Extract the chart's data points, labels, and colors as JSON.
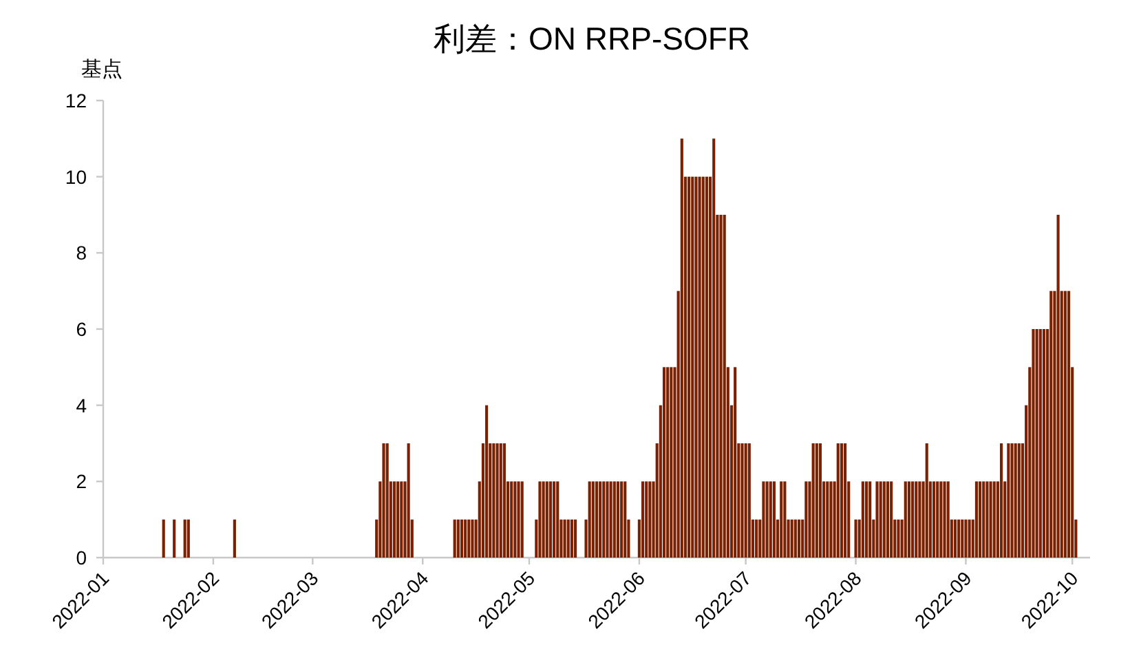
{
  "chart_data": {
    "type": "bar",
    "title": "利差：ON RRP-SOFR",
    "ylabel": "基点",
    "color": "#7b2100",
    "x": [
      "2022-01-18",
      "2022-01-21",
      "2022-01-24",
      "2022-01-25",
      "2022-02-07",
      "2022-03-19",
      "2022-03-20",
      "2022-03-21",
      "2022-03-22",
      "2022-03-23",
      "2022-03-24",
      "2022-03-25",
      "2022-03-26",
      "2022-03-27",
      "2022-03-28",
      "2022-03-29",
      "2022-04-10",
      "2022-04-11",
      "2022-04-12",
      "2022-04-13",
      "2022-04-14",
      "2022-04-15",
      "2022-04-16",
      "2022-04-17",
      "2022-04-18",
      "2022-04-19",
      "2022-04-20",
      "2022-04-21",
      "2022-04-22",
      "2022-04-23",
      "2022-04-24",
      "2022-04-25",
      "2022-04-26",
      "2022-04-27",
      "2022-04-28",
      "2022-04-29",
      "2022-05-03",
      "2022-05-04",
      "2022-05-05",
      "2022-05-06",
      "2022-05-07",
      "2022-05-08",
      "2022-05-09",
      "2022-05-10",
      "2022-05-11",
      "2022-05-12",
      "2022-05-13",
      "2022-05-14",
      "2022-05-17",
      "2022-05-18",
      "2022-05-19",
      "2022-05-20",
      "2022-05-21",
      "2022-05-22",
      "2022-05-23",
      "2022-05-24",
      "2022-05-25",
      "2022-05-26",
      "2022-05-27",
      "2022-05-28",
      "2022-05-29",
      "2022-06-01",
      "2022-06-02",
      "2022-06-03",
      "2022-06-04",
      "2022-06-05",
      "2022-06-06",
      "2022-06-07",
      "2022-06-08",
      "2022-06-09",
      "2022-06-10",
      "2022-06-11",
      "2022-06-12",
      "2022-06-13",
      "2022-06-14",
      "2022-06-15",
      "2022-06-16",
      "2022-06-17",
      "2022-06-18",
      "2022-06-19",
      "2022-06-20",
      "2022-06-21",
      "2022-06-22",
      "2022-06-23",
      "2022-06-24",
      "2022-06-25",
      "2022-06-26",
      "2022-06-27",
      "2022-06-28",
      "2022-06-29",
      "2022-06-30",
      "2022-07-01",
      "2022-07-02",
      "2022-07-03",
      "2022-07-04",
      "2022-07-05",
      "2022-07-06",
      "2022-07-07",
      "2022-07-08",
      "2022-07-09",
      "2022-07-10",
      "2022-07-11",
      "2022-07-12",
      "2022-07-13",
      "2022-07-14",
      "2022-07-15",
      "2022-07-16",
      "2022-07-17",
      "2022-07-18",
      "2022-07-19",
      "2022-07-20",
      "2022-07-21",
      "2022-07-22",
      "2022-07-23",
      "2022-07-24",
      "2022-07-25",
      "2022-07-26",
      "2022-07-27",
      "2022-07-28",
      "2022-07-29",
      "2022-07-30",
      "2022-08-01",
      "2022-08-02",
      "2022-08-03",
      "2022-08-04",
      "2022-08-05",
      "2022-08-06",
      "2022-08-07",
      "2022-08-08",
      "2022-08-09",
      "2022-08-10",
      "2022-08-11",
      "2022-08-12",
      "2022-08-13",
      "2022-08-14",
      "2022-08-15",
      "2022-08-16",
      "2022-08-17",
      "2022-08-18",
      "2022-08-19",
      "2022-08-20",
      "2022-08-21",
      "2022-08-22",
      "2022-08-23",
      "2022-08-24",
      "2022-08-25",
      "2022-08-26",
      "2022-08-27",
      "2022-08-28",
      "2022-08-29",
      "2022-08-30",
      "2022-08-31",
      "2022-09-01",
      "2022-09-02",
      "2022-09-03",
      "2022-09-04",
      "2022-09-05",
      "2022-09-06",
      "2022-09-07",
      "2022-09-08",
      "2022-09-09",
      "2022-09-10",
      "2022-09-11",
      "2022-09-12",
      "2022-09-13",
      "2022-09-14",
      "2022-09-15",
      "2022-09-16",
      "2022-09-17",
      "2022-09-18",
      "2022-09-19",
      "2022-09-20",
      "2022-09-21",
      "2022-09-22",
      "2022-09-23",
      "2022-09-24",
      "2022-09-25",
      "2022-09-26",
      "2022-09-27",
      "2022-09-28",
      "2022-09-29",
      "2022-09-30",
      "2022-10-01",
      "2022-10-02"
    ],
    "values": [
      1,
      1,
      1,
      1,
      1,
      1,
      2,
      3,
      3,
      2,
      2,
      2,
      2,
      2,
      3,
      1,
      1,
      1,
      1,
      1,
      1,
      1,
      1,
      2,
      3,
      4,
      3,
      3,
      3,
      3,
      3,
      2,
      2,
      2,
      2,
      2,
      1,
      2,
      2,
      2,
      2,
      2,
      2,
      1,
      1,
      1,
      1,
      1,
      1,
      2,
      2,
      2,
      2,
      2,
      2,
      2,
      2,
      2,
      2,
      2,
      1,
      1,
      2,
      2,
      2,
      2,
      3,
      4,
      5,
      5,
      5,
      5,
      7,
      11,
      10,
      10,
      10,
      10,
      10,
      10,
      10,
      10,
      11,
      9,
      9,
      9,
      5,
      4,
      5,
      3,
      3,
      3,
      3,
      1,
      1,
      1,
      2,
      2,
      2,
      2,
      1,
      2,
      2,
      1,
      1,
      1,
      1,
      1,
      2,
      2,
      3,
      3,
      3,
      2,
      2,
      2,
      2,
      3,
      3,
      3,
      2,
      1,
      1,
      2,
      2,
      2,
      1,
      2,
      2,
      2,
      2,
      2,
      1,
      1,
      1,
      2,
      2,
      2,
      2,
      2,
      2,
      3,
      2,
      2,
      2,
      2,
      2,
      2,
      1,
      1,
      1,
      1,
      1,
      1,
      1,
      2,
      2,
      2,
      2,
      2,
      2,
      2,
      3,
      2,
      3,
      3,
      3,
      3,
      3,
      4,
      5,
      6,
      6,
      6,
      6,
      6,
      7,
      7,
      9,
      7,
      7,
      7,
      5,
      1
    ],
    "xlim": [
      "2022-01-01",
      "2022-10-06"
    ],
    "xticks": [
      "2022-01",
      "2022-02",
      "2022-03",
      "2022-04",
      "2022-05",
      "2022-06",
      "2022-07",
      "2022-08",
      "2022-09",
      "2022-10"
    ],
    "ylim": [
      0,
      12
    ],
    "yticks": [
      0,
      2,
      4,
      6,
      8,
      10,
      12
    ]
  }
}
